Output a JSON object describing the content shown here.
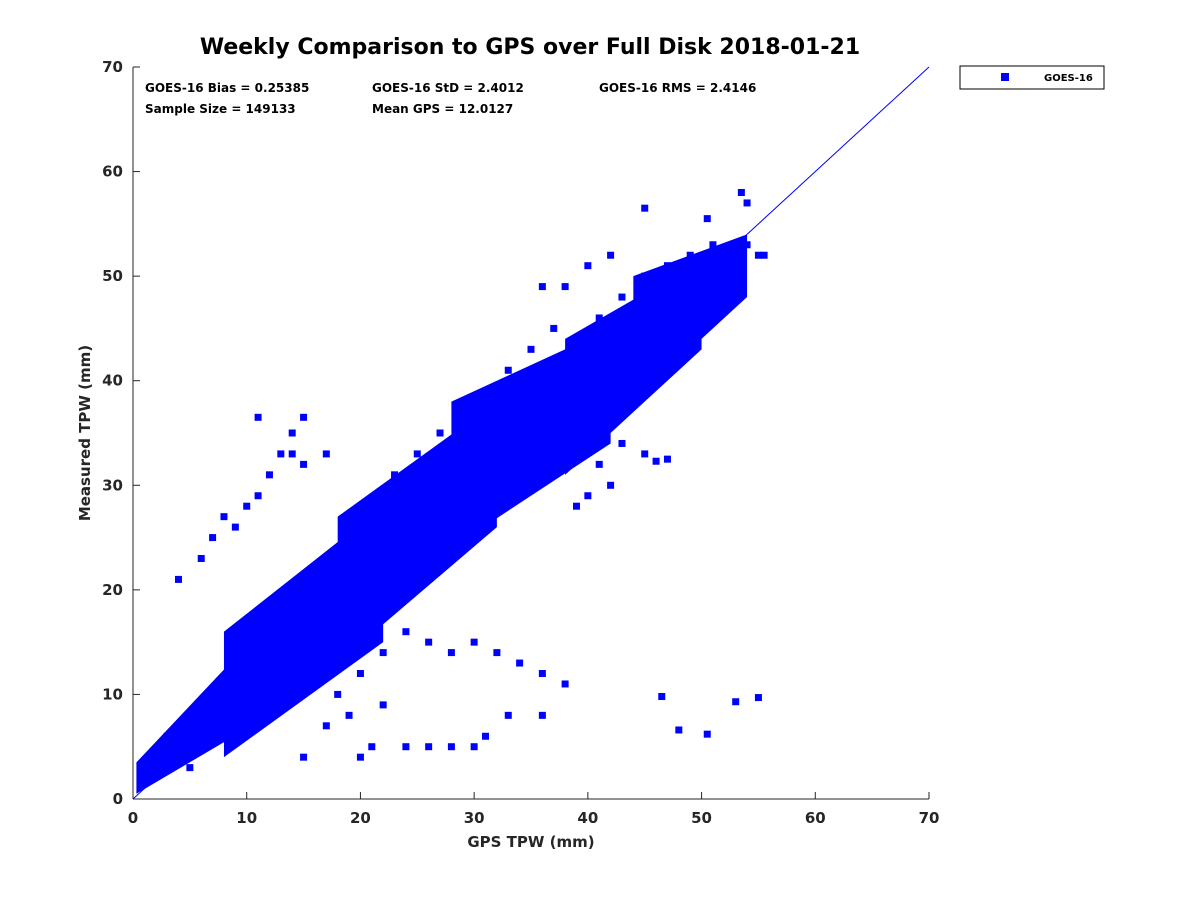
{
  "chart_data": {
    "type": "scatter",
    "title": "Weekly Comparison to GPS over Full Disk 2018-01-21",
    "xlabel": "GPS TPW (mm)",
    "ylabel": "Measured TPW (mm)",
    "xlim": [
      0,
      70
    ],
    "ylim": [
      0,
      70
    ],
    "xticks": [
      "0",
      "10",
      "20",
      "30",
      "40",
      "50",
      "60",
      "70"
    ],
    "yticks": [
      "0",
      "10",
      "20",
      "30",
      "40",
      "50",
      "60",
      "70"
    ],
    "grid": false,
    "legend_position": "outside-top-right",
    "series_color": "#0000ff",
    "reference_line": {
      "x": [
        0,
        70
      ],
      "y": [
        0,
        70
      ]
    },
    "stats": [
      "GOES-16 Bias = 0.25385",
      "GOES-16 StD = 2.4012",
      "GOES-16 RMS = 2.4146",
      "Sample Size = 149133",
      "Mean GPS = 12.0127"
    ],
    "series": [
      {
        "name": "GOES-16",
        "points": [
          [
            1,
            1.5
          ],
          [
            1.5,
            2.5
          ],
          [
            2,
            3
          ],
          [
            3,
            3.5
          ],
          [
            4,
            5
          ],
          [
            5,
            6
          ],
          [
            6,
            7
          ],
          [
            7,
            8
          ],
          [
            8,
            9
          ],
          [
            9,
            10
          ],
          [
            10,
            11
          ],
          [
            11,
            12
          ],
          [
            12,
            13
          ],
          [
            13,
            14
          ],
          [
            14,
            15
          ],
          [
            15,
            16
          ],
          [
            16,
            17
          ],
          [
            17,
            18
          ],
          [
            18,
            19
          ],
          [
            19,
            20
          ],
          [
            20,
            21
          ],
          [
            21,
            22
          ],
          [
            22,
            23
          ],
          [
            23,
            24
          ],
          [
            24,
            25
          ],
          [
            25,
            26
          ],
          [
            26,
            27
          ],
          [
            27,
            28
          ],
          [
            28,
            29
          ],
          [
            29,
            30
          ],
          [
            30,
            31
          ],
          [
            31,
            32
          ],
          [
            32,
            33
          ],
          [
            33,
            34
          ],
          [
            34,
            35
          ],
          [
            35,
            36
          ],
          [
            36,
            37
          ],
          [
            37,
            38
          ],
          [
            38,
            39
          ],
          [
            39,
            40
          ],
          [
            40,
            41
          ],
          [
            41,
            42
          ],
          [
            42,
            43
          ],
          [
            43,
            44
          ],
          [
            44,
            45
          ],
          [
            45,
            46
          ],
          [
            46,
            47
          ],
          [
            47,
            48
          ],
          [
            48,
            49
          ],
          [
            49,
            50
          ],
          [
            50,
            51
          ],
          [
            51,
            51
          ],
          [
            52,
            52
          ],
          [
            53,
            52
          ],
          [
            54,
            53
          ],
          [
            55,
            52
          ],
          [
            55.5,
            52
          ],
          [
            5,
            3
          ],
          [
            8,
            6
          ],
          [
            10,
            8
          ],
          [
            12,
            10
          ],
          [
            14,
            11
          ],
          [
            16,
            13
          ],
          [
            18,
            15
          ],
          [
            20,
            17
          ],
          [
            22,
            19
          ],
          [
            24,
            20
          ],
          [
            26,
            23
          ],
          [
            28,
            25
          ],
          [
            30,
            27
          ],
          [
            32,
            29
          ],
          [
            34,
            31
          ],
          [
            36,
            33
          ],
          [
            38,
            35
          ],
          [
            40,
            37
          ],
          [
            42,
            38
          ],
          [
            44,
            40
          ],
          [
            46,
            41
          ],
          [
            48,
            44
          ],
          [
            50,
            46
          ],
          [
            52,
            48
          ],
          [
            3,
            6
          ],
          [
            5,
            8
          ],
          [
            7,
            10
          ],
          [
            9,
            12
          ],
          [
            11,
            14
          ],
          [
            13,
            16
          ],
          [
            15,
            18
          ],
          [
            17,
            21
          ],
          [
            19,
            23
          ],
          [
            21,
            25
          ],
          [
            23,
            27
          ],
          [
            25,
            29
          ],
          [
            27,
            32
          ],
          [
            29,
            34
          ],
          [
            31,
            36
          ],
          [
            33,
            38
          ],
          [
            35,
            40
          ],
          [
            37,
            42
          ],
          [
            39,
            44
          ],
          [
            41,
            46
          ],
          [
            43,
            48
          ],
          [
            45,
            50
          ],
          [
            47,
            51
          ],
          [
            49,
            52
          ],
          [
            51,
            53
          ],
          [
            4,
            21
          ],
          [
            6,
            23
          ],
          [
            7,
            25
          ],
          [
            8,
            27
          ],
          [
            9,
            26
          ],
          [
            10,
            28
          ],
          [
            11,
            29
          ],
          [
            12,
            31
          ],
          [
            13,
            33
          ],
          [
            14,
            35
          ],
          [
            11,
            36.5
          ],
          [
            15,
            36.5
          ],
          [
            14,
            33
          ],
          [
            15,
            32
          ],
          [
            17,
            33
          ],
          [
            26,
            15
          ],
          [
            28,
            14
          ],
          [
            30,
            15
          ],
          [
            32,
            14
          ],
          [
            34,
            13
          ],
          [
            36,
            12
          ],
          [
            38,
            11
          ],
          [
            33,
            8
          ],
          [
            31,
            6
          ],
          [
            24,
            5
          ],
          [
            26,
            5
          ],
          [
            28,
            5
          ],
          [
            30,
            5
          ],
          [
            20,
            4
          ],
          [
            15,
            4
          ],
          [
            21,
            5
          ],
          [
            36,
            8
          ],
          [
            46.5,
            9.8
          ],
          [
            48,
            6.6
          ],
          [
            50.5,
            6.2
          ],
          [
            53,
            9.3
          ],
          [
            55,
            9.7
          ],
          [
            36,
            49
          ],
          [
            38,
            49
          ],
          [
            40,
            51
          ],
          [
            42,
            52
          ],
          [
            45,
            56.5
          ],
          [
            50.5,
            55.5
          ],
          [
            53.5,
            58
          ],
          [
            54,
            57
          ],
          [
            23,
            31
          ],
          [
            25,
            33
          ],
          [
            27,
            35
          ],
          [
            29,
            37
          ],
          [
            31,
            39
          ],
          [
            33,
            41
          ],
          [
            35,
            43
          ],
          [
            37,
            45
          ],
          [
            18,
            10
          ],
          [
            20,
            12
          ],
          [
            22,
            14
          ],
          [
            24,
            16
          ],
          [
            19,
            8
          ],
          [
            17,
            7
          ],
          [
            22,
            9
          ],
          [
            41,
            32
          ],
          [
            43,
            34
          ],
          [
            45,
            33
          ],
          [
            47,
            32.5
          ],
          [
            46,
            32.3
          ],
          [
            39,
            28
          ],
          [
            40,
            29
          ],
          [
            42,
            30
          ]
        ]
      }
    ]
  }
}
